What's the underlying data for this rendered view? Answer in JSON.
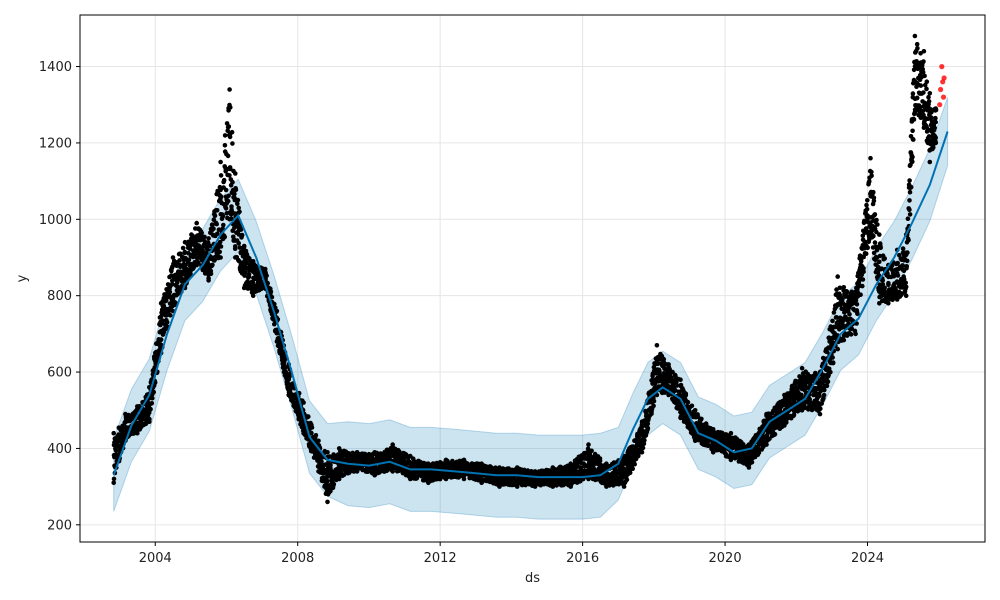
{
  "chart_data": {
    "type": "line",
    "title": "",
    "xlabel": "ds",
    "ylabel": "y",
    "xlim": [
      "2001-11-20",
      "2027-04-20"
    ],
    "ylim": [
      155,
      1535
    ],
    "grid": true,
    "x_ticks": [
      "2004",
      "2008",
      "2012",
      "2016",
      "2020",
      "2024"
    ],
    "y_ticks": [
      200,
      400,
      600,
      800,
      1000,
      1200,
      1400
    ],
    "colors": {
      "forecast_line": "#0072B2",
      "uncertainty_band": "#0072B2",
      "observed_points": "#000000",
      "future_points": "#ff0000",
      "grid": "#e6e6e6"
    },
    "series": [
      {
        "kind": "forecast",
        "x": [
          "2002-11-01",
          "2003-05-01",
          "2003-11-01",
          "2004-05-01",
          "2004-11-01",
          "2005-05-01",
          "2005-11-01",
          "2006-05-01",
          "2006-11-01",
          "2007-05-01",
          "2007-11-01",
          "2008-05-01",
          "2008-11-01",
          "2009-06-01",
          "2010-01-01",
          "2010-08-01",
          "2011-03-01",
          "2011-10-01",
          "2012-06-01",
          "2013-01-01",
          "2013-08-01",
          "2014-03-01",
          "2014-10-01",
          "2015-06-01",
          "2016-01-01",
          "2016-07-01",
          "2017-01-01",
          "2017-06-01",
          "2017-11-01",
          "2018-04-01",
          "2018-10-01",
          "2019-04-01",
          "2019-10-01",
          "2020-04-01",
          "2020-10-01",
          "2021-04-01",
          "2021-10-01",
          "2022-04-01",
          "2022-10-01",
          "2023-04-01",
          "2023-10-01",
          "2024-04-01",
          "2024-10-01",
          "2025-04-01",
          "2025-10-01",
          "2026-04-01"
        ],
        "yhat": [
          330,
          460,
          540,
          700,
          830,
          880,
          960,
          1010,
          900,
          760,
          600,
          430,
          370,
          360,
          355,
          365,
          345,
          345,
          340,
          335,
          330,
          330,
          325,
          325,
          325,
          330,
          360,
          450,
          530,
          560,
          530,
          440,
          420,
          390,
          400,
          470,
          500,
          530,
          610,
          700,
          740,
          830,
          900,
          990,
          1090,
          1230
        ],
        "lower": [
          235,
          365,
          445,
          605,
          735,
          785,
          865,
          915,
          805,
          665,
          505,
          335,
          275,
          250,
          245,
          255,
          235,
          235,
          230,
          225,
          220,
          220,
          215,
          215,
          215,
          220,
          265,
          355,
          435,
          465,
          435,
          345,
          325,
          295,
          305,
          375,
          405,
          435,
          515,
          605,
          645,
          735,
          805,
          895,
          995,
          1140
        ],
        "upper": [
          425,
          555,
          635,
          795,
          925,
          975,
          1055,
          1105,
          995,
          855,
          695,
          525,
          465,
          470,
          465,
          475,
          455,
          455,
          450,
          445,
          440,
          440,
          435,
          435,
          435,
          440,
          455,
          545,
          625,
          655,
          625,
          535,
          515,
          485,
          495,
          565,
          595,
          625,
          705,
          795,
          835,
          925,
          995,
          1085,
          1185,
          1320
        ]
      },
      {
        "kind": "observed",
        "x": [
          "2002-11-01",
          "2003-03-01",
          "2003-07-01",
          "2003-11-01",
          "2004-03-01",
          "2004-07-01",
          "2004-11-01",
          "2005-03-01",
          "2005-07-01",
          "2005-11-01",
          "2006-02-01",
          "2006-04-01",
          "2006-07-01",
          "2006-10-01",
          "2007-02-01",
          "2007-06-01",
          "2007-10-01",
          "2008-03-01",
          "2008-08-01",
          "2008-11-01",
          "2009-03-01",
          "2009-09-01",
          "2010-03-01",
          "2010-09-01",
          "2011-03-01",
          "2011-09-01",
          "2012-03-01",
          "2012-09-01",
          "2013-03-01",
          "2013-09-01",
          "2014-03-01",
          "2014-09-01",
          "2015-03-01",
          "2015-09-01",
          "2016-03-01",
          "2016-09-01",
          "2017-03-01",
          "2017-09-01",
          "2018-02-01",
          "2018-06-01",
          "2018-10-01",
          "2019-03-01",
          "2019-09-01",
          "2020-03-01",
          "2020-09-01",
          "2021-03-01",
          "2021-09-01",
          "2022-03-01",
          "2022-09-01",
          "2023-03-01",
          "2023-09-01",
          "2024-02-01",
          "2024-05-01",
          "2024-08-01",
          "2024-11-01",
          "2025-02-01",
          "2025-05-01",
          "2025-08-01",
          "2025-10-01",
          "2025-12-01"
        ],
        "y": [
          360,
          450,
          470,
          510,
          720,
          820,
          870,
          940,
          880,
          950,
          1150,
          1000,
          880,
          840,
          850,
          700,
          560,
          460,
          390,
          300,
          360,
          370,
          360,
          370,
          350,
          340,
          350,
          350,
          340,
          330,
          330,
          320,
          330,
          330,
          360,
          320,
          340,
          430,
          600,
          580,
          520,
          450,
          420,
          410,
          380,
          450,
          500,
          540,
          560,
          720,
          790,
          1050,
          850,
          800,
          820,
          880,
          1380,
          1300,
          1200,
          1250
        ],
        "y_high": [
          440,
          490,
          510,
          560,
          780,
          900,
          940,
          990,
          950,
          1150,
          1340,
          1120,
          930,
          890,
          870,
          760,
          620,
          520,
          420,
          390,
          400,
          390,
          390,
          410,
          380,
          360,
          370,
          370,
          360,
          350,
          350,
          340,
          350,
          360,
          410,
          360,
          380,
          470,
          670,
          620,
          580,
          500,
          450,
          440,
          410,
          490,
          540,
          610,
          600,
          850,
          810,
          1160,
          960,
          880,
          920,
          960,
          1480,
          1440,
          1330,
          1290
        ],
        "y_low": [
          310,
          420,
          440,
          470,
          650,
          760,
          820,
          880,
          840,
          900,
          1000,
          900,
          820,
          800,
          820,
          680,
          540,
          440,
          340,
          260,
          320,
          340,
          330,
          340,
          320,
          310,
          320,
          320,
          310,
          300,
          300,
          300,
          300,
          300,
          320,
          300,
          300,
          390,
          540,
          540,
          480,
          420,
          390,
          370,
          350,
          410,
          460,
          500,
          490,
          660,
          700,
          960,
          780,
          780,
          790,
          800,
          1280,
          1240,
          1150,
          1200
        ]
      },
      {
        "kind": "recent",
        "x": [
          "2026-01-10",
          "2026-01-20",
          "2026-02-01",
          "2026-02-10",
          "2026-02-18",
          "2026-02-25"
        ],
        "y": [
          1300,
          1340,
          1400,
          1360,
          1320,
          1370
        ]
      }
    ]
  }
}
